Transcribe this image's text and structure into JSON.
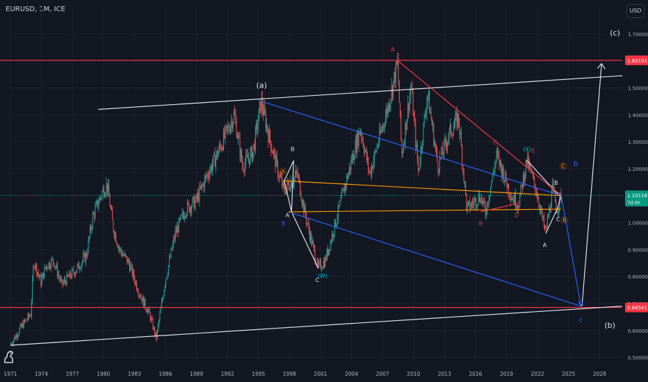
{
  "header": {
    "symbol": "EURUSD, 1M, ICE",
    "currency": "USD"
  },
  "colors": {
    "bg": "#131722",
    "up": "#26a69a",
    "down": "#ef5350",
    "grid": "#1e222d",
    "axis_text": "#b2b5be",
    "white": "#e0e3eb",
    "red": "#f23645",
    "blue": "#2962ff",
    "orange": "#ff9800",
    "teal": "#00bcd4",
    "current": "#089981"
  },
  "chart_data": {
    "type": "candlestick",
    "title": "EURUSD, 1M, ICE",
    "xlabel": "",
    "ylabel": "USD",
    "xlim": [
      1970.8,
      2030.2
    ],
    "ylim": [
      0.486,
      1.8
    ],
    "x_ticks": [
      1971,
      1974,
      1977,
      1980,
      1983,
      1986,
      1989,
      1992,
      1995,
      1998,
      2001,
      2004,
      2007,
      2010,
      2013,
      2016,
      2019,
      2022,
      2025,
      2028
    ],
    "y_ticks": [
      0.5,
      0.6,
      0.7,
      0.8,
      0.9,
      1.0,
      1.1,
      1.2,
      1.3,
      1.4,
      1.5,
      1.7
    ],
    "price_path": [
      [
        1971.0,
        0.545
      ],
      [
        1972.2,
        0.62
      ],
      [
        1973.0,
        0.66
      ],
      [
        1973.3,
        0.86
      ],
      [
        1974.0,
        0.78
      ],
      [
        1974.5,
        0.84
      ],
      [
        1975.2,
        0.86
      ],
      [
        1976.0,
        0.77
      ],
      [
        1977.5,
        0.83
      ],
      [
        1978.4,
        0.88
      ],
      [
        1979.0,
        1.02
      ],
      [
        1980.0,
        1.12
      ],
      [
        1980.4,
        1.14
      ],
      [
        1981.0,
        0.98
      ],
      [
        1981.6,
        0.9
      ],
      [
        1982.5,
        0.85
      ],
      [
        1983.5,
        0.74
      ],
      [
        1984.5,
        0.66
      ],
      [
        1985.15,
        0.57
      ],
      [
        1986.0,
        0.78
      ],
      [
        1987.0,
        0.96
      ],
      [
        1988.0,
        1.05
      ],
      [
        1989.0,
        1.08
      ],
      [
        1990.0,
        1.17
      ],
      [
        1991.0,
        1.25
      ],
      [
        1992.7,
        1.4
      ],
      [
        1993.5,
        1.21
      ],
      [
        1994.5,
        1.26
      ],
      [
        1995.3,
        1.45
      ],
      [
        1996.0,
        1.33
      ],
      [
        1997.0,
        1.18
      ],
      [
        1997.5,
        1.12
      ],
      [
        1998.8,
        1.18
      ],
      [
        1999.5,
        1.04
      ],
      [
        2000.8,
        0.83
      ],
      [
        2001.5,
        0.86
      ],
      [
        2002.5,
        1.0
      ],
      [
        2003.5,
        1.15
      ],
      [
        2004.9,
        1.35
      ],
      [
        2005.8,
        1.18
      ],
      [
        2006.5,
        1.28
      ],
      [
        2007.5,
        1.42
      ],
      [
        2008.5,
        1.59
      ],
      [
        2008.9,
        1.25
      ],
      [
        2009.8,
        1.51
      ],
      [
        2010.5,
        1.19
      ],
      [
        2011.4,
        1.48
      ],
      [
        2012.4,
        1.21
      ],
      [
        2013.5,
        1.33
      ],
      [
        2014.4,
        1.39
      ],
      [
        2015.2,
        1.05
      ],
      [
        2016.5,
        1.1
      ],
      [
        2017.0,
        1.04
      ],
      [
        2018.1,
        1.25
      ],
      [
        2019.5,
        1.1
      ],
      [
        2020.2,
        1.07
      ],
      [
        2021.0,
        1.23
      ],
      [
        2022.0,
        1.11
      ],
      [
        2022.8,
        0.96
      ],
      [
        2023.5,
        1.12
      ],
      [
        2023.9,
        1.05
      ],
      [
        2024.3,
        1.1
      ]
    ],
    "horizontal_levels": [
      {
        "name": "upper-level",
        "price": 1.60191,
        "label": "1.60191"
      },
      {
        "name": "lower-level",
        "price": 0.68541,
        "label": "0.68541"
      }
    ],
    "current_price": {
      "price": 1.10118,
      "label": "1.10118",
      "countdown": "7d 0h"
    },
    "trendlines": [
      {
        "name": "white-channel-top",
        "color": "white",
        "points": [
          [
            1979.5,
            1.42
          ],
          [
            2030.2,
            1.545
          ]
        ]
      },
      {
        "name": "white-channel-bottom",
        "color": "white",
        "points": [
          [
            1971.0,
            0.545
          ],
          [
            2030.2,
            0.69
          ]
        ]
      },
      {
        "name": "white-triangle-1",
        "color": "white",
        "points": [
          [
            1997.5,
            1.155
          ],
          [
            1998.4,
            1.23
          ],
          [
            1998.2,
            1.04
          ],
          [
            1997.5,
            1.155
          ]
        ]
      },
      {
        "name": "white-wave-c",
        "color": "white",
        "points": [
          [
            1998.2,
            1.04
          ],
          [
            2000.8,
            0.83
          ]
        ]
      },
      {
        "name": "white-wave-2",
        "color": "white",
        "points": [
          [
            2021.0,
            1.23
          ],
          [
            2024.1,
            1.1
          ]
        ]
      },
      {
        "name": "white-triangle-2",
        "color": "white",
        "points": [
          [
            2022.8,
            0.96
          ],
          [
            2023.9,
            1.05
          ],
          [
            2024.3,
            1.1
          ]
        ]
      },
      {
        "name": "white-projection",
        "color": "white",
        "points": [
          [
            2026.3,
            0.69
          ],
          [
            2028.2,
            1.59
          ]
        ]
      },
      {
        "name": "red-downtrend",
        "color": "red",
        "points": [
          [
            2008.5,
            1.6
          ],
          [
            2024.3,
            1.1
          ]
        ]
      },
      {
        "name": "blue-upper",
        "color": "blue",
        "points": [
          [
            1995.3,
            1.45
          ],
          [
            2024.3,
            1.1
          ],
          [
            2026.2,
            0.69
          ]
        ]
      },
      {
        "name": "blue-lower",
        "color": "blue",
        "points": [
          [
            1997.9,
            1.04
          ],
          [
            2026.2,
            0.69
          ]
        ]
      },
      {
        "name": "orange-upper",
        "color": "orange",
        "points": [
          [
            1997.5,
            1.155
          ],
          [
            2024.2,
            1.1
          ]
        ]
      },
      {
        "name": "orange-lower",
        "color": "orange",
        "points": [
          [
            1997.9,
            1.04
          ],
          [
            2024.3,
            1.05
          ]
        ]
      },
      {
        "name": "red-wave-b-d",
        "color": "red",
        "points": [
          [
            2016.5,
            1.04
          ],
          [
            2020.0,
            1.07
          ]
        ]
      }
    ],
    "wave_labels": [
      {
        "text": "(a)",
        "x": 1995.3,
        "y": 1.5,
        "color": "white",
        "size": 11
      },
      {
        "text": "A",
        "x": 2008.0,
        "y": 1.635,
        "color": "red",
        "size": 8
      },
      {
        "text": "(c)",
        "x": 2029.5,
        "y": 1.695,
        "color": "white",
        "size": 11
      },
      {
        "text": "(b)",
        "x": 2029.0,
        "y": 0.61,
        "color": "white",
        "size": 11
      },
      {
        "text": "B",
        "x": 1998.3,
        "y": 1.265,
        "color": "white",
        "size": 8
      },
      {
        "text": "Ⓐ",
        "x": 1997.4,
        "y": 1.18,
        "color": "orange",
        "size": 10
      },
      {
        "text": "A",
        "x": 1997.8,
        "y": 1.02,
        "color": "white",
        "size": 8
      },
      {
        "text": "B",
        "x": 1997.4,
        "y": 0.99,
        "color": "blue",
        "size": 8
      },
      {
        "text": "C",
        "x": 2000.7,
        "y": 0.78,
        "color": "white",
        "size": 8
      },
      {
        "text": "(W)",
        "x": 2001.2,
        "y": 0.795,
        "color": "teal",
        "size": 8
      },
      {
        "text": "C",
        "x": 2017.9,
        "y": 1.29,
        "color": "red",
        "size": 8
      },
      {
        "text": "(X)",
        "x": 2021.0,
        "y": 1.265,
        "color": "teal",
        "size": 8
      },
      {
        "text": "E",
        "x": 2021.6,
        "y": 1.26,
        "color": "red",
        "size": 8
      },
      {
        "text": "b",
        "x": 2025.7,
        "y": 1.21,
        "color": "blue",
        "size": 11
      },
      {
        "text": "B",
        "x": 2023.8,
        "y": 1.14,
        "color": "white",
        "size": 8
      },
      {
        "text": "Ⓒ",
        "x": 2024.5,
        "y": 1.2,
        "color": "orange",
        "size": 10
      },
      {
        "text": "B",
        "x": 2016.5,
        "y": 0.99,
        "color": "red",
        "size": 8
      },
      {
        "text": "D",
        "x": 2020.0,
        "y": 1.02,
        "color": "red",
        "size": 8
      },
      {
        "text": "Y",
        "x": 2024.1,
        "y": 1.045,
        "color": "teal",
        "size": 8
      },
      {
        "text": "C",
        "x": 2024.0,
        "y": 1.005,
        "color": "white",
        "size": 8
      },
      {
        "text": "Ⓑ",
        "x": 2024.6,
        "y": 1.0,
        "color": "orange",
        "size": 10
      },
      {
        "text": "A",
        "x": 2022.7,
        "y": 0.91,
        "color": "white",
        "size": 8
      },
      {
        "text": "c",
        "x": 2026.2,
        "y": 0.63,
        "color": "blue",
        "size": 10
      }
    ]
  }
}
